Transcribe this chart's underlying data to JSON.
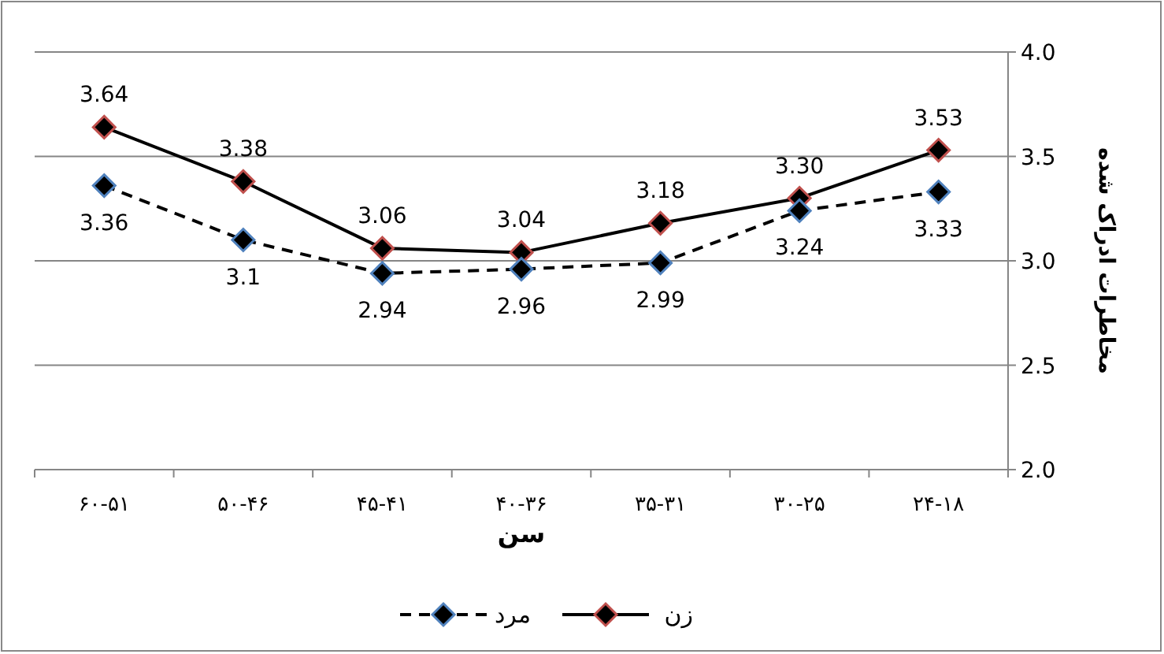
{
  "chart_data": {
    "type": "line",
    "xlabel": "سن",
    "ylabel": "مخاطرات ادراک شده",
    "categories": [
      "۶۰-۵۱",
      "۵۰-۴۶",
      "۴۵-۴۱",
      "۴۰-۳۶",
      "۳۵-۳۱",
      "۳۰-۲۵",
      "۲۴-۱۸"
    ],
    "series": [
      {
        "name": "زن",
        "color": "#000000",
        "line_style": "solid",
        "values": [
          3.64,
          3.38,
          3.06,
          3.04,
          3.18,
          3.3,
          3.53
        ],
        "value_labels": [
          "3.64",
          "3.38",
          "3.06",
          "3.04",
          "3.18",
          "3.30",
          "3.53"
        ]
      },
      {
        "name": "مرد",
        "color": "#000000",
        "line_style": "dashed",
        "values": [
          3.36,
          3.1,
          2.94,
          2.96,
          2.99,
          3.24,
          3.33
        ],
        "value_labels": [
          "3.36",
          "3.1",
          "2.94",
          "2.96",
          "2.99",
          "3.24",
          "3.33"
        ]
      }
    ],
    "ylim": [
      2.0,
      4.0
    ],
    "yticks": [
      {
        "value": 2.0,
        "label": "2.0"
      },
      {
        "value": 2.5,
        "label": "2.5"
      },
      {
        "value": 3.0,
        "label": "3.0"
      },
      {
        "value": 3.5,
        "label": "3.5"
      },
      {
        "value": 4.0,
        "label": "4.0"
      }
    ],
    "grid": "y",
    "legend": "bottom",
    "marker": "diamond"
  }
}
